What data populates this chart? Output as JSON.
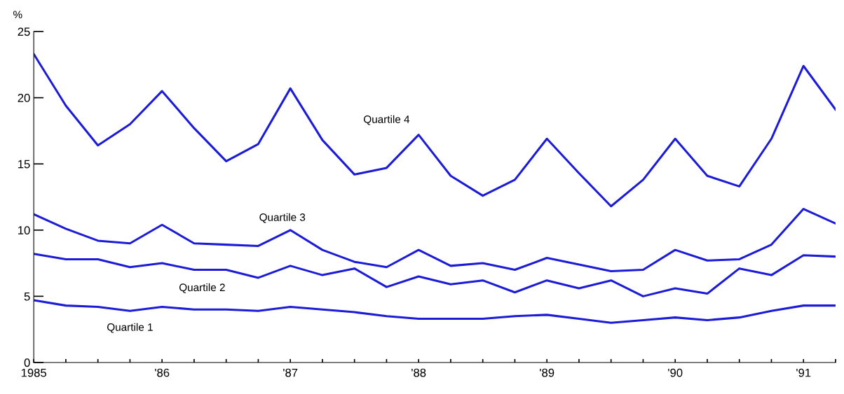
{
  "chart_data": {
    "type": "line",
    "ylabel": "%",
    "x": [
      1985,
      1985.25,
      1985.5,
      1985.75,
      1986,
      1986.25,
      1986.5,
      1986.75,
      1987,
      1987.25,
      1987.5,
      1987.75,
      1988,
      1988.25,
      1988.5,
      1988.75,
      1989,
      1989.25,
      1989.5,
      1989.75,
      1990,
      1990.25,
      1990.5,
      1990.75,
      1991,
      1991.25
    ],
    "series": [
      {
        "name": "Quartile 4",
        "color": "#1c1cd8",
        "values": [
          23.3,
          19.4,
          16.4,
          18.0,
          20.5,
          17.7,
          15.2,
          16.5,
          20.7,
          16.8,
          14.2,
          14.7,
          17.2,
          14.1,
          12.6,
          13.8,
          16.9,
          14.3,
          11.8,
          13.8,
          16.9,
          14.1,
          13.3,
          16.9,
          22.4,
          19.1
        ]
      },
      {
        "name": "Quartile 3",
        "color": "#1c1cd8",
        "values": [
          11.2,
          10.1,
          9.2,
          9.0,
          10.4,
          9.0,
          8.9,
          8.8,
          10.0,
          8.5,
          7.6,
          7.2,
          8.5,
          7.3,
          7.5,
          7.0,
          7.9,
          7.4,
          6.9,
          7.0,
          8.5,
          7.7,
          7.8,
          8.9,
          11.6,
          10.5
        ]
      },
      {
        "name": "Quartile 2",
        "color": "#1c1cd8",
        "values": [
          8.2,
          7.8,
          7.8,
          7.2,
          7.5,
          7.0,
          7.0,
          6.4,
          7.3,
          6.6,
          7.1,
          5.7,
          6.5,
          5.9,
          6.2,
          5.3,
          6.2,
          5.6,
          6.2,
          5.0,
          5.6,
          5.2,
          7.1,
          6.6,
          8.1,
          8.0
        ]
      },
      {
        "name": "Quartile 1",
        "color": "#1c1cd8",
        "values": [
          4.7,
          4.3,
          4.2,
          3.9,
          4.2,
          4.0,
          4.0,
          3.9,
          4.2,
          4.0,
          3.8,
          3.5,
          3.3,
          3.3,
          3.3,
          3.5,
          3.6,
          3.3,
          3.0,
          3.2,
          3.4,
          3.2,
          3.4,
          3.9,
          4.3,
          4.3
        ]
      }
    ],
    "xlim": [
      1985,
      1991.25
    ],
    "ylim": [
      0,
      25
    ],
    "yticks": [
      0,
      5,
      10,
      15,
      20,
      25
    ],
    "xticks": [
      {
        "value": 1985,
        "label": "1985"
      },
      {
        "value": 1985.25,
        "label": null
      },
      {
        "value": 1985.5,
        "label": null
      },
      {
        "value": 1985.75,
        "label": null
      },
      {
        "value": 1986,
        "label": "'86"
      },
      {
        "value": 1986.25,
        "label": null
      },
      {
        "value": 1986.5,
        "label": null
      },
      {
        "value": 1986.75,
        "label": null
      },
      {
        "value": 1987,
        "label": "'87"
      },
      {
        "value": 1987.25,
        "label": null
      },
      {
        "value": 1987.5,
        "label": null
      },
      {
        "value": 1987.75,
        "label": null
      },
      {
        "value": 1988,
        "label": "'88"
      },
      {
        "value": 1988.25,
        "label": null
      },
      {
        "value": 1988.5,
        "label": null
      },
      {
        "value": 1988.75,
        "label": null
      },
      {
        "value": 1989,
        "label": "'89"
      },
      {
        "value": 1989.25,
        "label": null
      },
      {
        "value": 1989.5,
        "label": null
      },
      {
        "value": 1989.75,
        "label": null
      },
      {
        "value": 1990,
        "label": "'90"
      },
      {
        "value": 1990.25,
        "label": null
      },
      {
        "value": 1990.5,
        "label": null
      },
      {
        "value": 1990.75,
        "label": null
      },
      {
        "value": 1991,
        "label": "'91"
      },
      {
        "value": 1991.25,
        "label": null
      }
    ],
    "grid": false,
    "legend": false,
    "marker": "none",
    "line_style": "solid"
  }
}
